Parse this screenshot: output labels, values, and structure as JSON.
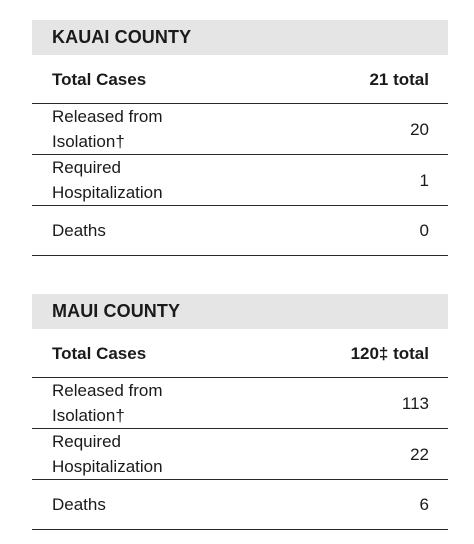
{
  "kauai": {
    "header": "KAUAI COUNTY",
    "total_label": "Total Cases",
    "total_value": "21 total",
    "rows": [
      {
        "label": "Released from Isolation†",
        "value": "20"
      },
      {
        "label": "Required Hospitalization",
        "value": "1"
      },
      {
        "label": "Deaths",
        "value": "0"
      }
    ]
  },
  "maui": {
    "header": "MAUI COUNTY",
    "total_label": "Total Cases",
    "total_value": "120‡ total",
    "rows": [
      {
        "label": "Released from Isolation†",
        "value": "113"
      },
      {
        "label": "Required Hospitalization",
        "value": "22"
      },
      {
        "label": "Deaths",
        "value": "6"
      }
    ]
  }
}
